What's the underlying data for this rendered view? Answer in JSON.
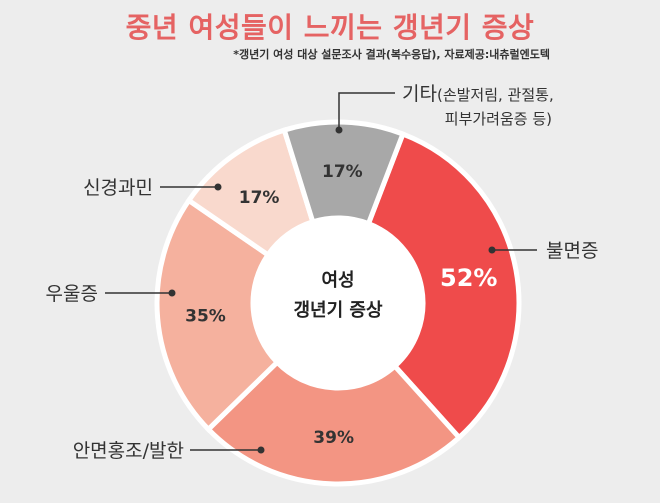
{
  "title": "중년 여성들이 느끼는 갱년기 증상",
  "subtitle": "*갱년기 여성 대상 설문조사 결과(복수응답), 자료제공:내츄럴엔도텍",
  "chart_data": {
    "type": "pie",
    "variant": "donut",
    "center_label": [
      "여성",
      "갱년기 증상"
    ],
    "categories": [
      "불면증",
      "안면홍조/발한",
      "우울증",
      "신경과민",
      "기타"
    ],
    "category_sub": {
      "기타": [
        "(손발저림, 관절통,",
        "피부가려움증 등)"
      ]
    },
    "values": [
      52,
      39,
      35,
      17,
      17
    ],
    "value_labels": [
      "52%",
      "39%",
      "35%",
      "17%",
      "17%"
    ],
    "colors": [
      "#ef4b4b",
      "#f39583",
      "#f5b19e",
      "#f9d9cd",
      "#a8a8a8"
    ]
  }
}
